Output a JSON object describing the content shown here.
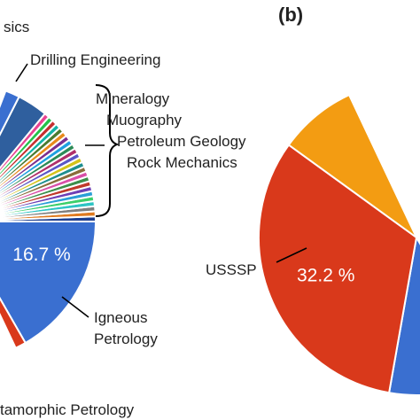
{
  "chart_data": [
    {
      "type": "pie",
      "panel_label": "",
      "labels": {
        "top_partial": "sics",
        "drilling": "Drilling Engineering",
        "list": [
          "Mineralogy",
          "Muography",
          "Petroleum Geology",
          "Rock Mechanics"
        ],
        "igneous_line1": "Igneous",
        "igneous_line2": "Petrology",
        "metamorphic": "tamorphic Petrology"
      },
      "slices": [
        {
          "name": "Igneous Petrology",
          "value": 16.7,
          "label": "16.7 %",
          "color": "#3a6fd0"
        },
        {
          "name": "Drilling Engineering",
          "value": 1.6,
          "color": "#2f5f9e"
        }
      ],
      "small_slice_colors": [
        "#1e3f8f",
        "#e07a1f",
        "#7f7f7f",
        "#2ec4c4",
        "#3ccf6a",
        "#2a9fd6",
        "#6e3fb5",
        "#c0392b",
        "#3b8f4a",
        "#d94fa8",
        "#8a6d3b",
        "#1e8f8f",
        "#d4c21a",
        "#5a56c6",
        "#b02f6a",
        "#2d8b57",
        "#1fa0e0",
        "#7a2f8f",
        "#e88a1a",
        "#4a7a2f",
        "#12b3a6",
        "#c42f2f",
        "#24c24a",
        "#e84393"
      ]
    },
    {
      "type": "pie",
      "panel_label": "(b)",
      "slices": [
        {
          "name": "USSSP",
          "value": 32.2,
          "label": "32.2 %",
          "color": "#d9391b"
        },
        {
          "name": "",
          "value": 8,
          "color": "#f39c12"
        }
      ],
      "labels": {
        "usssp": "USSSP"
      }
    }
  ]
}
